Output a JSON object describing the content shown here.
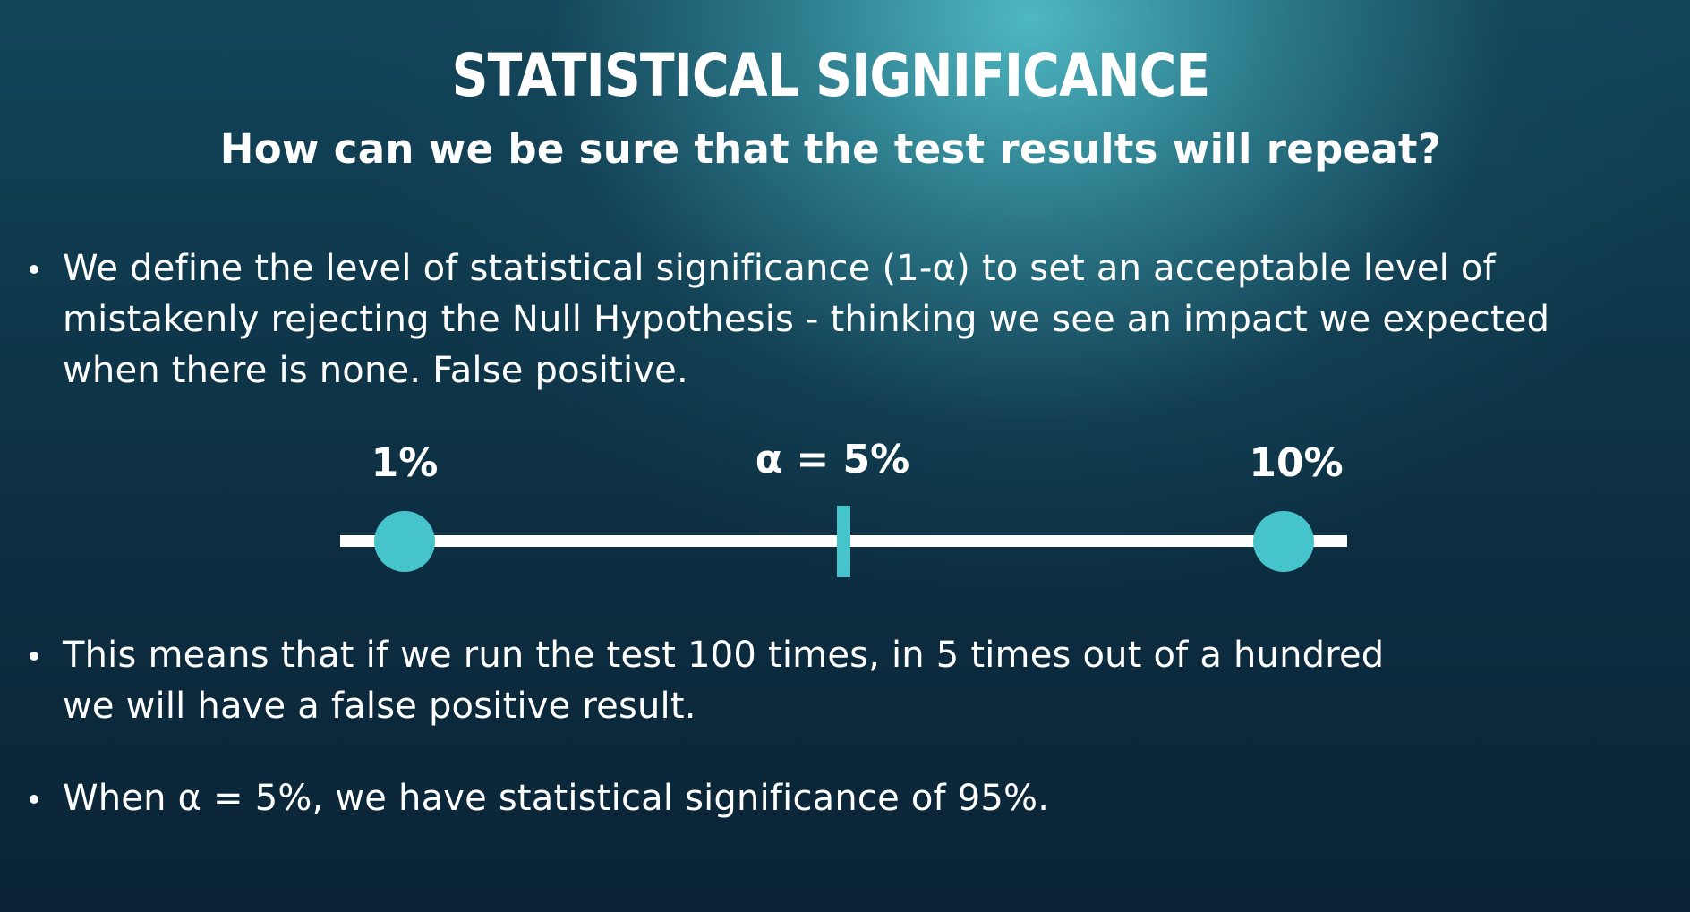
{
  "title": "STATISTICAL SIGNIFICANCE",
  "subtitle": "How can we be sure that the test results will repeat?",
  "bullets": [
    "We define the level of statistical significance (1-α) to set an acceptable level of mistakenly rejecting the Null Hypothesis - thinking we see an impact we expected when there is none. False positive.",
    "This means that if we run the test 100 times, in 5 times out of a hundred we will have a false positive result.",
    "When α = 5%, we have statistical significance of 95%."
  ],
  "scale": {
    "left_label": "1%",
    "center_label": "α = 5%",
    "right_label": "10%",
    "accent_color": "#45c4cc",
    "line_color": "#ffffff"
  }
}
